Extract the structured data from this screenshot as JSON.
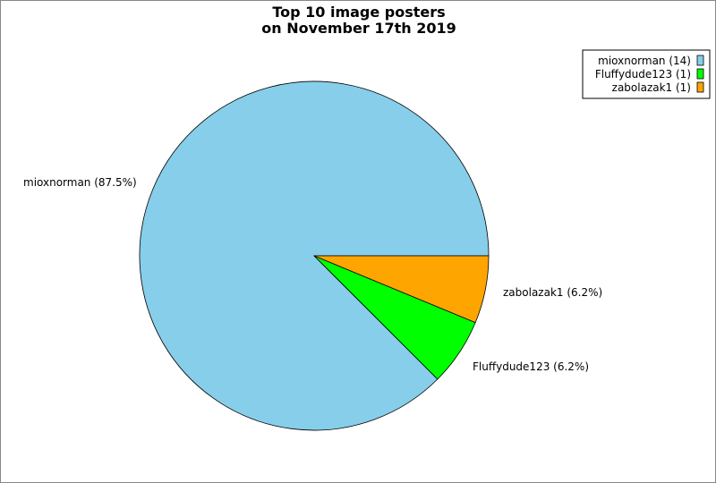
{
  "chart_data": {
    "type": "pie",
    "title_line1": "Top 10 image posters",
    "title_line2": "on November 17th 2019",
    "slices": [
      {
        "label": "mioxnorman",
        "value": 14,
        "percent": "87.5%",
        "color": "#87CEEB",
        "legend": "mioxnorman (14)",
        "slice_label": "mioxnorman (87.5%)"
      },
      {
        "label": "Fluffydude123",
        "value": 1,
        "percent": "6.2%",
        "color": "#00FF00",
        "legend": "Fluffydude123 (1)",
        "slice_label": "Fluffydude123 (6.2%)"
      },
      {
        "label": "zabolazak1",
        "value": 1,
        "percent": "6.2%",
        "color": "#FFA500",
        "legend": "zabolazak1 (1)",
        "slice_label": "zabolazak1 (6.2%)"
      }
    ],
    "legend_position": "top-right"
  }
}
